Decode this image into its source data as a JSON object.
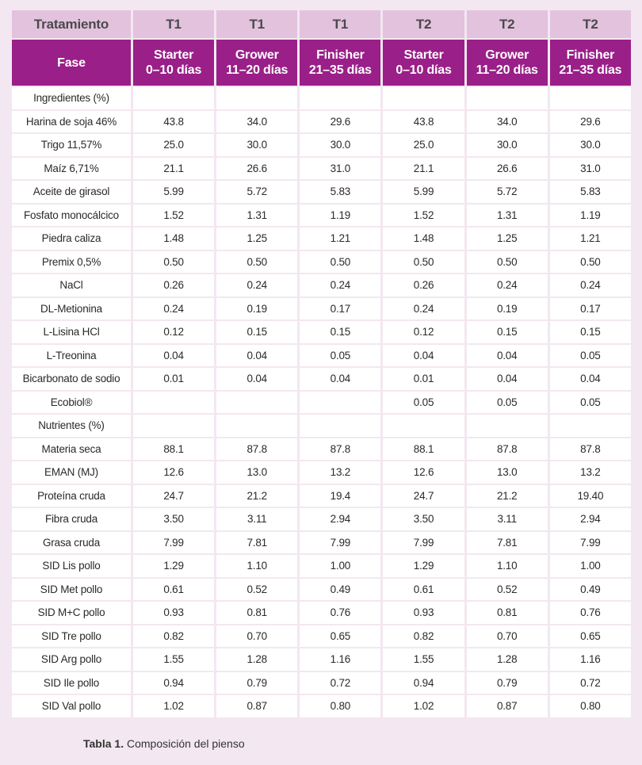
{
  "header": {
    "row1": [
      "Tratamiento",
      "T1",
      "T1",
      "T1",
      "T2",
      "T2",
      "T2"
    ],
    "row2_label": "Fase",
    "phases": [
      {
        "name": "Starter",
        "days": "0–10 días"
      },
      {
        "name": "Grower",
        "days": "11–20 días"
      },
      {
        "name": "Finisher",
        "days": "21–35 días"
      },
      {
        "name": "Starter",
        "days": "0–10 días"
      },
      {
        "name": "Grower",
        "days": "11–20 días"
      },
      {
        "name": "Finisher",
        "days": "21–35 días"
      }
    ]
  },
  "rows": [
    [
      "Ingredientes (%)",
      "",
      "",
      "",
      "",
      "",
      ""
    ],
    [
      "Harina de soja 46%",
      "43.8",
      "34.0",
      "29.6",
      "43.8",
      "34.0",
      "29.6"
    ],
    [
      "Trigo 11,57%",
      "25.0",
      "30.0",
      "30.0",
      "25.0",
      "30.0",
      "30.0"
    ],
    [
      "Maíz 6,71%",
      "21.1",
      "26.6",
      "31.0",
      "21.1",
      "26.6",
      "31.0"
    ],
    [
      "Aceite de girasol",
      "5.99",
      "5.72",
      "5.83",
      "5.99",
      "5.72",
      "5.83"
    ],
    [
      "Fosfato monocálcico",
      "1.52",
      "1.31",
      "1.19",
      "1.52",
      "1.31",
      "1.19"
    ],
    [
      "Piedra caliza",
      "1.48",
      "1.25",
      "1.21",
      "1.48",
      "1.25",
      "1.21"
    ],
    [
      "Premix 0,5%",
      "0.50",
      "0.50",
      "0.50",
      "0.50",
      "0.50",
      "0.50"
    ],
    [
      "NaCl",
      "0.26",
      "0.24",
      "0.24",
      "0.26",
      "0.24",
      "0.24"
    ],
    [
      "DL-Metionina",
      "0.24",
      "0.19",
      "0.17",
      "0.24",
      "0.19",
      "0.17"
    ],
    [
      "L-Lisina HCl",
      "0.12",
      "0.15",
      "0.15",
      "0.12",
      "0.15",
      "0.15"
    ],
    [
      "L-Treonina",
      "0.04",
      "0.04",
      "0.05",
      "0.04",
      "0.04",
      "0.05"
    ],
    [
      "Bicarbonato de sodio",
      "0.01",
      "0.04",
      "0.04",
      "0.01",
      "0.04",
      "0.04"
    ],
    [
      "Ecobiol®",
      "",
      "",
      "",
      "0.05",
      "0.05",
      "0.05"
    ],
    [
      "Nutrientes (%)",
      "",
      "",
      "",
      "",
      "",
      ""
    ],
    [
      "Materia seca",
      "88.1",
      "87.8",
      "87.8",
      "88.1",
      "87.8",
      "87.8"
    ],
    [
      "EMAN (MJ)",
      "12.6",
      "13.0",
      "13.2",
      "12.6",
      "13.0",
      "13.2"
    ],
    [
      "Proteína cruda",
      "24.7",
      "21.2",
      "19.4",
      "24.7",
      "21.2",
      "19.40"
    ],
    [
      "Fibra cruda",
      "3.50",
      "3.11",
      "2.94",
      "3.50",
      "3.11",
      "2.94"
    ],
    [
      "Grasa cruda",
      "7.99",
      "7.81",
      "7.99",
      "7.99",
      "7.81",
      "7.99"
    ],
    [
      "SID Lis pollo",
      "1.29",
      "1.10",
      "1.00",
      "1.29",
      "1.10",
      "1.00"
    ],
    [
      "SID Met pollo",
      "0.61",
      "0.52",
      "0.49",
      "0.61",
      "0.52",
      "0.49"
    ],
    [
      "SID M+C pollo",
      "0.93",
      "0.81",
      "0.76",
      "0.93",
      "0.81",
      "0.76"
    ],
    [
      "SID Tre pollo",
      "0.82",
      "0.70",
      "0.65",
      "0.82",
      "0.70",
      "0.65"
    ],
    [
      "SID Arg pollo",
      "1.55",
      "1.28",
      "1.16",
      "1.55",
      "1.28",
      "1.16"
    ],
    [
      "SID Ile pollo",
      "0.94",
      "0.79",
      "0.72",
      "0.94",
      "0.79",
      "0.72"
    ],
    [
      "SID Val pollo",
      "1.02",
      "0.87",
      "0.80",
      "1.02",
      "0.87",
      "0.80"
    ]
  ],
  "caption": {
    "label": "Tabla 1.",
    "text": " Composición del pienso"
  },
  "colors": {
    "background": "#f3e7f1",
    "header_light": "#e3c2de",
    "header_dark": "#9a1f88"
  }
}
